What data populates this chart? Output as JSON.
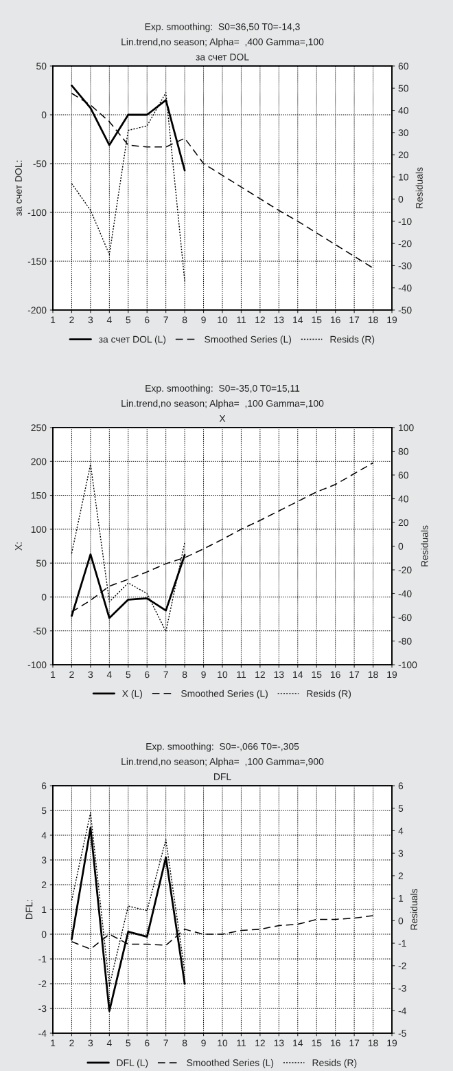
{
  "chart_data": [
    {
      "type": "line",
      "title": "Exp. smoothing:  S0=36,50 T0=-14,3",
      "subtitle": "Lin.trend,no season; Alpha=  ,400 Gamma=,100\nза счет DOL",
      "ylabel": "за счет DOL:",
      "y2label": "Residuals",
      "xlim": [
        1,
        19
      ],
      "xticks": [
        1,
        2,
        3,
        4,
        5,
        6,
        7,
        8,
        9,
        10,
        11,
        12,
        13,
        14,
        15,
        16,
        17,
        18,
        19
      ],
      "ylim": [
        -200,
        50
      ],
      "yticks": [
        -200,
        -150,
        -100,
        -50,
        0,
        50
      ],
      "y2lim": [
        -50,
        60
      ],
      "y2ticks": [
        -50,
        -40,
        -30,
        -20,
        -10,
        0,
        10,
        20,
        30,
        40,
        50,
        60
      ],
      "grid": true,
      "legend": "bottom",
      "marker": "none",
      "series": [
        {
          "name": "за счет DOL (L)",
          "color": "#000000",
          "line_style": "solid",
          "x": [
            2,
            3,
            4,
            5,
            6,
            7,
            8
          ],
          "values": [
            30,
            7,
            -31,
            0,
            0,
            15,
            -57
          ]
        },
        {
          "name": "Smoothed Series (L)",
          "color": "#000000",
          "line_style": "dashed",
          "x": [
            2,
            3,
            4,
            5,
            6,
            7,
            8,
            9,
            10,
            11,
            12,
            13,
            14,
            15,
            16,
            17,
            18
          ],
          "values": [
            22,
            10,
            -7,
            -31,
            -33,
            -33,
            -24,
            -50,
            -62,
            -74,
            -86,
            -98,
            -109,
            -121,
            -133,
            -145,
            -157
          ]
        },
        {
          "name": "Resids (R)",
          "color": "#000000",
          "line_style": "dotted",
          "axis": "y2",
          "x": [
            2,
            3,
            4,
            5,
            6,
            7,
            8
          ],
          "values": [
            7,
            -5,
            -25,
            31,
            33,
            48,
            -37
          ]
        }
      ]
    },
    {
      "type": "line",
      "title": "Exp. smoothing:  S0=-35,0 T0=15,11",
      "subtitle": "Lin.trend,no season; Alpha=  ,100 Gamma=,100\nX",
      "ylabel": "X:",
      "y2label": "Residuals",
      "xlim": [
        1,
        19
      ],
      "xticks": [
        1,
        2,
        3,
        4,
        5,
        6,
        7,
        8,
        9,
        10,
        11,
        12,
        13,
        14,
        15,
        16,
        17,
        18,
        19
      ],
      "ylim": [
        -100,
        250
      ],
      "yticks": [
        -100,
        -50,
        0,
        50,
        100,
        150,
        200,
        250
      ],
      "y2lim": [
        -100,
        100
      ],
      "y2ticks": [
        -100,
        -80,
        -60,
        -40,
        -20,
        0,
        20,
        40,
        60,
        80,
        100
      ],
      "grid": true,
      "legend": "bottom",
      "marker": "none",
      "series": [
        {
          "name": "X (L)",
          "color": "#000000",
          "line_style": "solid",
          "x": [
            2,
            3,
            4,
            5,
            6,
            7,
            8
          ],
          "values": [
            -28,
            63,
            -31,
            -4,
            -2,
            -20,
            62
          ]
        },
        {
          "name": "Smoothed Series (L)",
          "color": "#000000",
          "line_style": "dashed",
          "x": [
            2,
            3,
            4,
            5,
            6,
            7,
            8,
            9,
            10,
            11,
            12,
            13,
            14,
            15,
            16,
            17,
            18
          ],
          "values": [
            -22,
            -5,
            16,
            26,
            37,
            49,
            58,
            71,
            85,
            100,
            113,
            127,
            141,
            155,
            166,
            182,
            198
          ]
        },
        {
          "name": "Resids (R)",
          "color": "#000000",
          "line_style": "dotted",
          "axis": "y2",
          "x": [
            2,
            3,
            4,
            5,
            6,
            7,
            8
          ],
          "values": [
            -6,
            69,
            -47,
            -31,
            -40,
            -72,
            3
          ]
        }
      ]
    },
    {
      "type": "line",
      "title": "Exp. smoothing:  S0=-,066 T0=-,305",
      "subtitle": "Lin.trend,no season; Alpha=  ,100 Gamma=,900\nDFL",
      "ylabel": "DFL:",
      "y2label": "Residuals",
      "xlim": [
        1,
        19
      ],
      "xticks": [
        1,
        2,
        3,
        4,
        5,
        6,
        7,
        8,
        9,
        10,
        11,
        12,
        13,
        14,
        15,
        16,
        17,
        18,
        19
      ],
      "ylim": [
        -4,
        6
      ],
      "yticks": [
        -4,
        -3,
        -2,
        -1,
        0,
        1,
        2,
        3,
        4,
        5,
        6
      ],
      "y2lim": [
        -5,
        6
      ],
      "y2ticks": [
        -5,
        -4,
        -3,
        -2,
        -1,
        0,
        1,
        2,
        3,
        4,
        5,
        6
      ],
      "grid": true,
      "legend": "bottom",
      "marker": "none",
      "series": [
        {
          "name": "DFL (L)",
          "color": "#000000",
          "line_style": "solid",
          "x": [
            2,
            3,
            4,
            5,
            6,
            7,
            8
          ],
          "values": [
            -0.2,
            4.3,
            -3.1,
            0.1,
            -0.1,
            3.1,
            -2
          ]
        },
        {
          "name": "Smoothed Series (L)",
          "color": "#000000",
          "line_style": "dashed",
          "x": [
            2,
            3,
            4,
            5,
            6,
            7,
            8,
            9,
            10,
            11,
            12,
            13,
            14,
            15,
            16,
            17,
            18
          ],
          "values": [
            -0.3,
            -0.6,
            0,
            -0.4,
            -0.4,
            -0.45,
            0.2,
            0,
            0,
            0.15,
            0.2,
            0.35,
            0.4,
            0.6,
            0.6,
            0.65,
            0.75
          ]
        },
        {
          "name": "Resids (R)",
          "color": "#000000",
          "line_style": "dotted",
          "axis": "y2",
          "x": [
            2,
            3,
            4,
            5,
            6,
            7,
            8
          ],
          "values": [
            0.9,
            4.8,
            -2.9,
            0.65,
            0.45,
            3.6,
            -2.25
          ]
        }
      ]
    }
  ]
}
